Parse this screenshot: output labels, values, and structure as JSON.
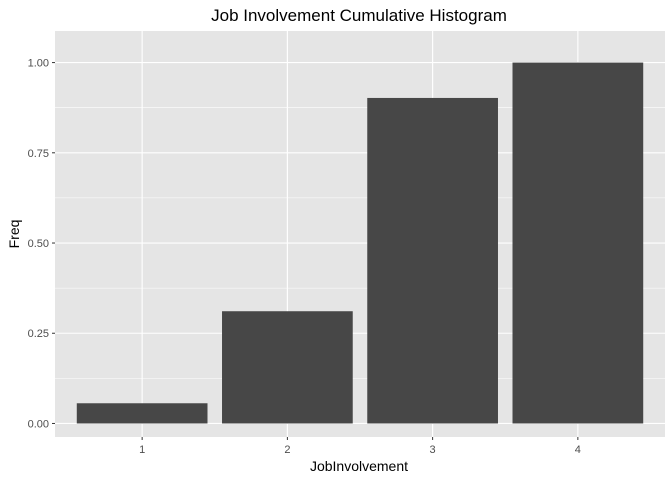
{
  "chart_data": {
    "type": "bar",
    "title": "Job Involvement Cumulative Histogram",
    "xlabel": "JobInvolvement",
    "ylabel": "Freq",
    "categories": [
      "1",
      "2",
      "3",
      "4"
    ],
    "values": [
      0.056,
      0.311,
      0.902,
      1.0
    ],
    "ylim": [
      -0.0375,
      1.0875
    ],
    "yticks": [
      0.0,
      0.25,
      0.5,
      0.75,
      1.0
    ],
    "ytick_labels": [
      "0.00",
      "0.25",
      "0.50",
      "0.75",
      "1.00"
    ],
    "grid": true,
    "legend": "none",
    "colors": {
      "bar": "#474747",
      "panel_background": "#e5e5e5",
      "grid": "#ffffff"
    }
  }
}
